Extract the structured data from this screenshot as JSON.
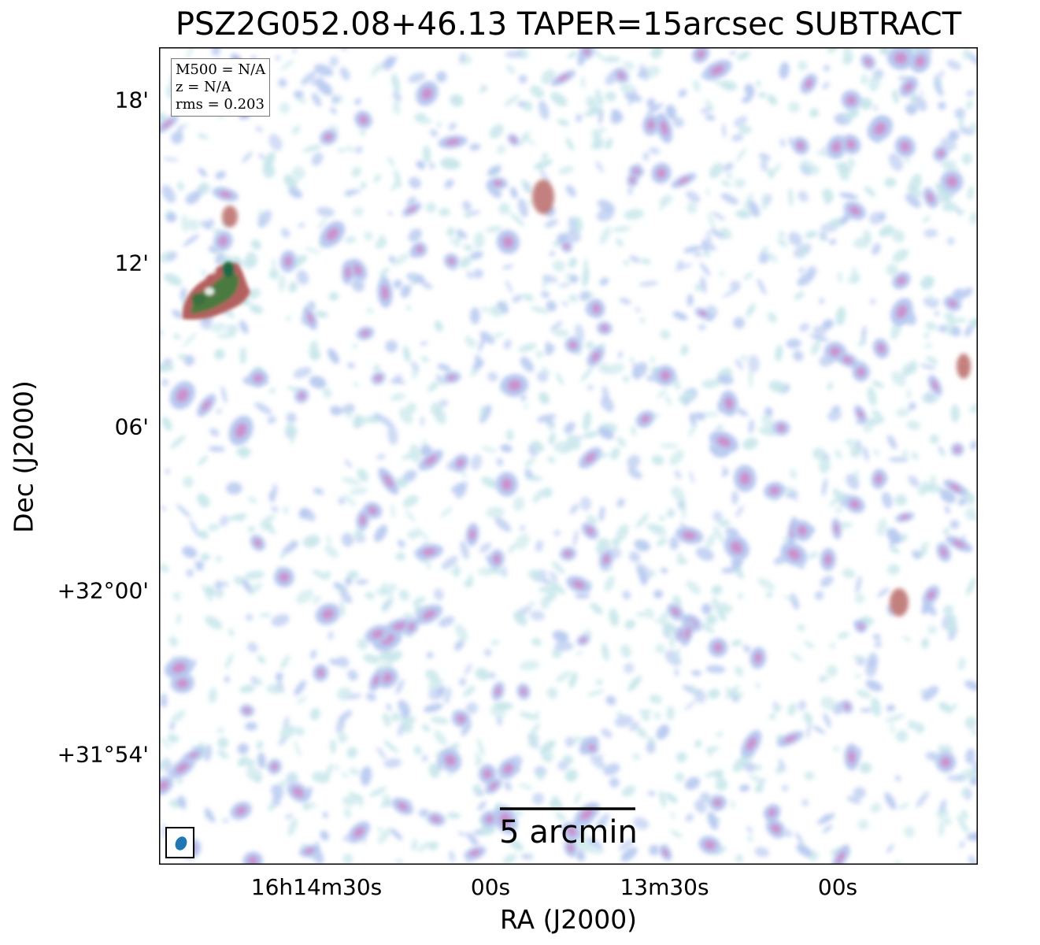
{
  "figure": {
    "title": "PSZ2G052.08+46.13 TAPER=15arcsec SUBTRACT",
    "xlabel": "RA (J2000)",
    "ylabel": "Dec (J2000)",
    "x_ticks": [
      "16h14m30s",
      "00s",
      "13m30s",
      "00s"
    ],
    "y_ticks": [
      "18'",
      "12'",
      "06'",
      "+32°00'",
      "+31°54'"
    ],
    "info": {
      "mass": "M500 = N/A",
      "redshift": "z = N/A",
      "rms": "rms = 0.203"
    },
    "scalebar_label": "5 arcmin",
    "colors": {
      "beam": "#1f77b4",
      "noise_low": "#c6e6ea",
      "noise_mid": "#b7c9f0",
      "noise_high": "#cf86c8",
      "source_peak": "#1a6b45",
      "source_mid": "#b4605e"
    }
  }
}
